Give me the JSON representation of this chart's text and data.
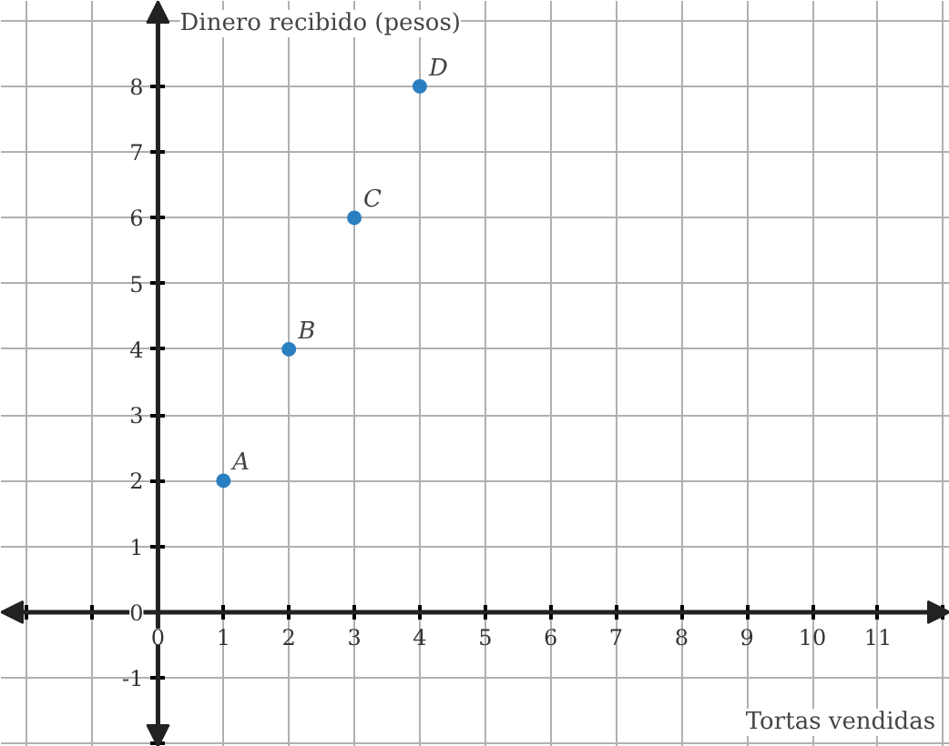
{
  "chart_data": {
    "type": "scatter",
    "xlabel": "Tortas vendidas",
    "ylabel": "Dinero recibido (pesos)",
    "x": [
      1,
      2,
      3,
      4
    ],
    "series": [
      {
        "color": "#2a7fc1",
        "values": [
          2,
          4,
          6,
          8
        ]
      }
    ],
    "marker": "circle",
    "annotations": [
      {
        "text": "A",
        "x": 1,
        "y": 2
      },
      {
        "text": "B",
        "x": 2,
        "y": 4
      },
      {
        "text": "C",
        "x": 3,
        "y": 6
      },
      {
        "text": "D",
        "x": 4,
        "y": 8
      }
    ],
    "xlim": [
      -2.4,
      12.1
    ],
    "ylim": [
      -2.05,
      9.3
    ],
    "xticks": [
      {
        "value": -2,
        "label": null
      },
      {
        "value": -1,
        "label": null
      },
      0,
      1,
      2,
      3,
      4,
      5,
      6,
      7,
      8,
      9,
      10,
      11,
      {
        "value": 12,
        "label": null
      }
    ],
    "yticks": [
      {
        "value": -2,
        "label": null
      },
      -1,
      0,
      1,
      2,
      3,
      4,
      5,
      6,
      7,
      8,
      {
        "value": 9,
        "label": null
      }
    ],
    "grid": true
  }
}
